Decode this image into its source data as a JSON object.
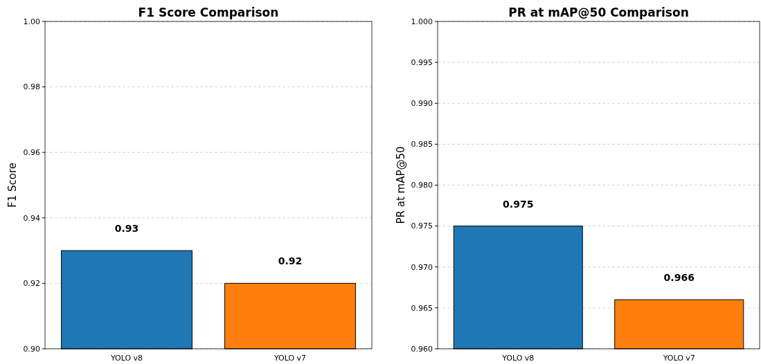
{
  "chart_data": [
    {
      "type": "bar",
      "title": "F1 Score Comparison",
      "ylabel": "F1 Score",
      "categories": [
        "YOLO v8",
        "YOLO v7"
      ],
      "values": [
        0.93,
        0.92
      ],
      "colors": [
        "#1f77b4",
        "#ff7f0e"
      ],
      "ylim": [
        0.9,
        1.0
      ],
      "yticks": [
        {
          "value": 0.9,
          "label": "0.90"
        },
        {
          "value": 0.92,
          "label": "0.92"
        },
        {
          "value": 0.94,
          "label": "0.94"
        },
        {
          "value": 0.96,
          "label": "0.96"
        },
        {
          "value": 0.98,
          "label": "0.98"
        },
        {
          "value": 1.0,
          "label": "1.00"
        }
      ],
      "grid": "y",
      "data_labels": true
    },
    {
      "type": "bar",
      "title": "PR at mAP@50 Comparison",
      "ylabel": "PR at mAP@50",
      "categories": [
        "YOLO v8",
        "YOLO v7"
      ],
      "values": [
        0.975,
        0.966
      ],
      "colors": [
        "#1f77b4",
        "#ff7f0e"
      ],
      "ylim": [
        0.96,
        1.0
      ],
      "yticks": [
        {
          "value": 0.96,
          "label": "0.960"
        },
        {
          "value": 0.965,
          "label": "0.965"
        },
        {
          "value": 0.97,
          "label": "0.970"
        },
        {
          "value": 0.975,
          "label": "0.975"
        },
        {
          "value": 0.98,
          "label": "0.980"
        },
        {
          "value": 0.985,
          "label": "0.985"
        },
        {
          "value": 0.99,
          "label": "0.990"
        },
        {
          "value": 0.995,
          "label": "0.995"
        },
        {
          "value": 1.0,
          "label": "1.000"
        }
      ],
      "grid": "y",
      "data_labels": true
    }
  ]
}
